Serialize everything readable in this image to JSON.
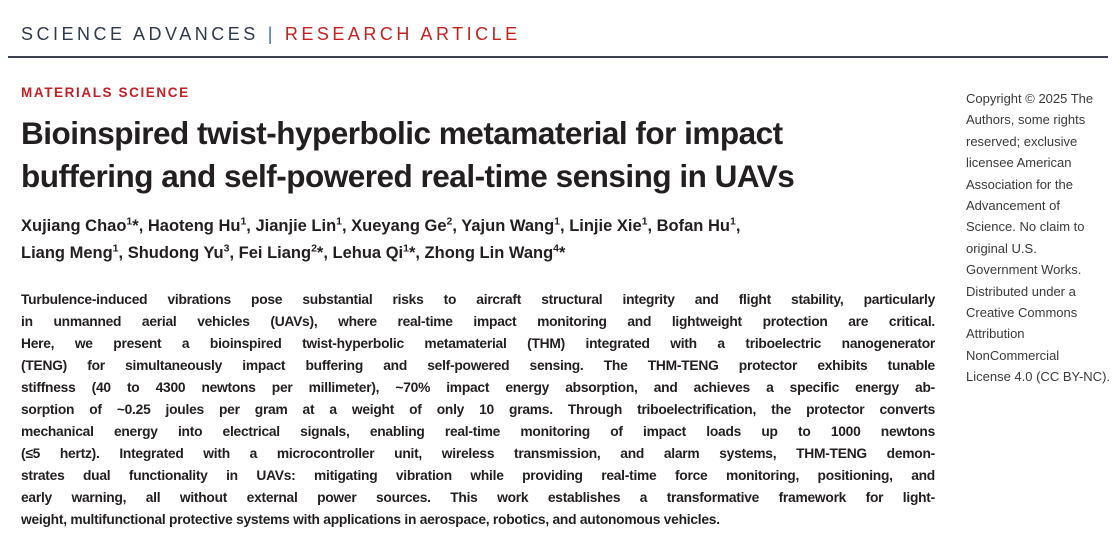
{
  "masthead": {
    "journal": "SCIENCE ADVANCES",
    "separator": "|",
    "article_type": "RESEARCH ARTICLE"
  },
  "article": {
    "section_label": "MATERIALS SCIENCE",
    "title_lines": [
      "Bioinspired twist-hyperbolic metamaterial for impact",
      "buffering and self-powered real-time sensing in UAVs"
    ],
    "author_lines": [
      {
        "authors": [
          {
            "name": "Xujiang Chao",
            "sup": "1",
            "star": true
          },
          {
            "name": "Haoteng Hu",
            "sup": "1",
            "star": false
          },
          {
            "name": "Jianjie Lin",
            "sup": "1",
            "star": false
          },
          {
            "name": "Xueyang Ge",
            "sup": "2",
            "star": false
          },
          {
            "name": "Yajun Wang",
            "sup": "1",
            "star": false
          },
          {
            "name": "Linjie Xie",
            "sup": "1",
            "star": false
          },
          {
            "name": "Bofan Hu",
            "sup": "1",
            "star": false
          }
        ],
        "suffix": ","
      },
      {
        "authors": [
          {
            "name": "Liang Meng",
            "sup": "1",
            "star": false
          },
          {
            "name": "Shudong Yu",
            "sup": "3",
            "star": false
          },
          {
            "name": "Fei Liang",
            "sup": "2",
            "star": true
          },
          {
            "name": "Lehua Qi",
            "sup": "1",
            "star": true
          },
          {
            "name": "Zhong Lin Wang",
            "sup": "4",
            "star": true
          }
        ],
        "suffix": ""
      }
    ],
    "abstract_lines": [
      "Turbulence-induced vibrations pose substantial risks to aircraft structural integrity and flight stability, particularly",
      "in unmanned aerial vehicles (UAVs), where real-time impact monitoring and lightweight protection are critical.",
      "Here, we present a bioinspired twist-hyperbolic metamaterial (THM) integrated with a triboelectric nanogenerator",
      "(TENG) for simultaneously impact buffering and self-powered sensing. The THM-TENG protector exhibits tunable",
      "stiffness (40 to 4300 newtons per millimeter), ~70% impact energy absorption, and achieves a specific energy ab-",
      "sorption of ~0.25 joules per gram at a weight of only 10 grams. Through triboelectrification, the protector converts",
      "mechanical energy into electrical signals, enabling real-time monitoring of impact loads up to 1000 newtons",
      "(≤5 hertz). Integrated with a microcontroller unit, wireless transmission, and alarm systems, THM-TENG demon-",
      "strates dual functionality in UAVs: mitigating vibration while providing real-time force monitoring, positioning, and",
      "early warning, all without external power sources. This work establishes a transformative framework for light-",
      "weight, multifunctional protective systems with applications in aerospace, robotics, and autonomous vehicles."
    ]
  },
  "sidebar": {
    "copyright_lines": [
      "Copyright © 2025 The",
      "Authors, some rights",
      "reserved; exclusive",
      "licensee American",
      "Association for the",
      "Advancement of",
      "Science. No claim to",
      "original U.S.",
      "Government Works.",
      "Distributed under a",
      "Creative Commons",
      "Attribution",
      "NonCommercial",
      "License 4.0 (CC BY-NC)."
    ]
  },
  "colors": {
    "journal_navy": "#303a4b",
    "separator_blue": "#3e6fae",
    "article_red": "#c5211f",
    "section_red": "#c32026",
    "text_black": "#231f20",
    "rule_dark": "#3b4151"
  }
}
